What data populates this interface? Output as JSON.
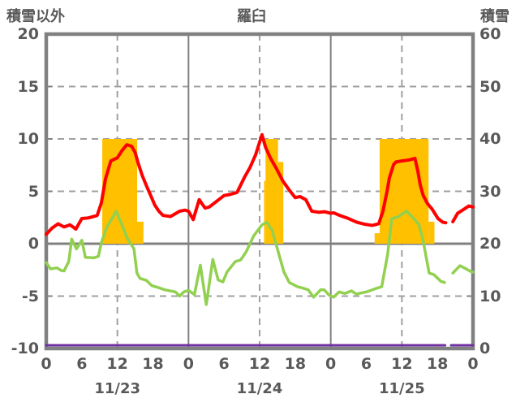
{
  "page": {
    "left_axis_title": "積雪以外",
    "title": "羅臼",
    "right_axis_title": "積雪"
  },
  "colors": {
    "temperature_line": "#FF0000",
    "secondary_line": "#92D050",
    "sunshine_bar": "#FFC000",
    "snow_depth_line": "#7030A0",
    "axis": "#808080",
    "grid": "#A0A0A0",
    "text": "#595959"
  },
  "chart_data": {
    "type": "line",
    "title": "羅臼",
    "left_axis": {
      "title": "積雪以外",
      "min": -10,
      "max": 20,
      "tick_values": [
        20,
        15,
        10,
        5,
        0,
        -5,
        -10
      ],
      "tick_labels": [
        "20",
        "15",
        "10",
        "5",
        "0",
        "-5",
        "-10"
      ]
    },
    "right_axis": {
      "title": "積雪",
      "min": 0,
      "max": 60,
      "tick_values": [
        60,
        50,
        40,
        30,
        20,
        10,
        0
      ],
      "tick_labels": [
        "60",
        "50",
        "40",
        "30",
        "20",
        "10",
        "0"
      ]
    },
    "x_axis": {
      "total_hours": 72,
      "hour_tick_step": 6,
      "hour_tick_labels": [
        "0",
        "6",
        "12",
        "18",
        "0",
        "6",
        "12",
        "18",
        "0",
        "6",
        "12",
        "18",
        "0"
      ],
      "date_labels": [
        "11/23",
        "11/24",
        "11/25"
      ],
      "date_label_hours": [
        12,
        36,
        60
      ],
      "dashed_vertical_hours": [
        12,
        36,
        60
      ],
      "solid_vertical_hours": [
        24,
        48
      ]
    },
    "dashed_gridline_values": [
      15,
      10,
      5,
      -5
    ],
    "zero_line_value": 0,
    "series": [
      {
        "name": "temperature-line",
        "color": "#FF0000",
        "axis": "left",
        "width": 4,
        "points": [
          [
            0,
            0.9
          ],
          [
            1,
            1.5
          ],
          [
            2,
            1.9
          ],
          [
            3,
            1.6
          ],
          [
            4,
            1.8
          ],
          [
            5,
            1.4
          ],
          [
            6,
            2.4
          ],
          [
            7,
            2.45
          ],
          [
            8,
            2.6
          ],
          [
            8.6,
            2.7
          ],
          [
            9.3,
            3.9
          ],
          [
            10,
            6.2
          ],
          [
            10.9,
            7.9
          ],
          [
            12,
            8.2
          ],
          [
            12.8,
            8.9
          ],
          [
            13.6,
            9.45
          ],
          [
            14.4,
            9.3
          ],
          [
            15,
            8.7
          ],
          [
            15.5,
            7.7
          ],
          [
            16.2,
            6.5
          ],
          [
            17,
            5.4
          ],
          [
            17.7,
            4.5
          ],
          [
            18.3,
            3.7
          ],
          [
            19,
            3.1
          ],
          [
            19.7,
            2.7
          ],
          [
            21,
            2.6
          ],
          [
            22.5,
            3.1
          ],
          [
            23.4,
            3.2
          ],
          [
            24,
            3.1
          ],
          [
            24.8,
            2.3
          ],
          [
            25.8,
            4.2
          ],
          [
            26.8,
            3.4
          ],
          [
            27.5,
            3.5
          ],
          [
            30,
            4.6
          ],
          [
            31,
            4.7
          ],
          [
            32.2,
            4.9
          ],
          [
            33.5,
            6.4
          ],
          [
            34.4,
            7.3
          ],
          [
            35.3,
            8.45
          ],
          [
            36.4,
            10.4
          ],
          [
            37,
            9.2
          ],
          [
            37.8,
            8.2
          ],
          [
            38.9,
            7.1
          ],
          [
            39.9,
            6.0
          ],
          [
            40.9,
            5.2
          ],
          [
            42,
            4.4
          ],
          [
            42.8,
            4.5
          ],
          [
            43.8,
            4.2
          ],
          [
            44.8,
            3.1
          ],
          [
            46,
            3.0
          ],
          [
            47,
            3.05
          ],
          [
            48,
            2.9
          ],
          [
            48.5,
            2.95
          ],
          [
            49.5,
            2.7
          ],
          [
            51,
            2.4
          ],
          [
            52.4,
            2.05
          ],
          [
            53.8,
            1.85
          ],
          [
            55,
            1.75
          ],
          [
            56.1,
            1.9
          ],
          [
            56.8,
            3.1
          ],
          [
            57.5,
            5.0
          ],
          [
            57.9,
            6.3
          ],
          [
            58.6,
            7.55
          ],
          [
            59,
            7.8
          ],
          [
            60,
            7.9
          ],
          [
            61.3,
            8.0
          ],
          [
            62.2,
            8.15
          ],
          [
            62.7,
            6.9
          ],
          [
            63.1,
            5.6
          ],
          [
            63.6,
            4.6
          ],
          [
            64.3,
            3.85
          ],
          [
            65.1,
            3.3
          ],
          [
            66.1,
            2.4
          ],
          [
            66.9,
            2.05
          ],
          [
            67.4,
            2.0
          ],
          [
            68,
            null
          ],
          [
            68.6,
            2.1
          ],
          [
            69.4,
            2.9
          ],
          [
            70.5,
            3.3
          ],
          [
            71.3,
            3.6
          ],
          [
            72,
            3.5
          ]
        ]
      },
      {
        "name": "secondary-temperature-line",
        "color": "#92D050",
        "axis": "left",
        "width": 3.5,
        "points": [
          [
            0,
            -1.8
          ],
          [
            0.7,
            -2.4
          ],
          [
            1.8,
            -2.3
          ],
          [
            2.5,
            -2.55
          ],
          [
            3,
            -2.6
          ],
          [
            3.8,
            -1.7
          ],
          [
            4.3,
            0.44
          ],
          [
            5.1,
            -0.5
          ],
          [
            6,
            0.33
          ],
          [
            6.6,
            -1.3
          ],
          [
            8,
            -1.35
          ],
          [
            8.8,
            -1.2
          ],
          [
            9.3,
            0.1
          ],
          [
            10.2,
            1.55
          ],
          [
            11,
            2.3
          ],
          [
            11.8,
            3.1
          ],
          [
            12.7,
            1.9
          ],
          [
            13.6,
            0.6
          ],
          [
            14.8,
            -0.5
          ],
          [
            15.3,
            -2.8
          ],
          [
            15.8,
            -3.3
          ],
          [
            16.9,
            -3.5
          ],
          [
            17.8,
            -4.0
          ],
          [
            19,
            -4.2
          ],
          [
            20,
            -4.4
          ],
          [
            21.8,
            -4.6
          ],
          [
            22.5,
            -5.0
          ],
          [
            23.2,
            -4.6
          ],
          [
            24,
            -4.45
          ],
          [
            25,
            -4.85
          ],
          [
            26,
            -2.05
          ],
          [
            27,
            -5.8
          ],
          [
            28.1,
            -1.5
          ],
          [
            29,
            -3.45
          ],
          [
            29.8,
            -3.65
          ],
          [
            30.5,
            -2.7
          ],
          [
            31.9,
            -1.7
          ],
          [
            32.8,
            -1.55
          ],
          [
            33.7,
            -0.8
          ],
          [
            35,
            0.75
          ],
          [
            36.4,
            1.8
          ],
          [
            37.2,
            2.05
          ],
          [
            38.1,
            1.3
          ],
          [
            39.2,
            -0.9
          ],
          [
            40.1,
            -2.7
          ],
          [
            41,
            -3.7
          ],
          [
            42.4,
            -4.1
          ],
          [
            43.1,
            -4.2
          ],
          [
            44.2,
            -4.4
          ],
          [
            45.1,
            -5.1
          ],
          [
            46.3,
            -4.4
          ],
          [
            46.9,
            -4.4
          ],
          [
            47.7,
            -4.9
          ],
          [
            48.5,
            -5.1
          ],
          [
            49.4,
            -4.6
          ],
          [
            50.4,
            -4.75
          ],
          [
            51.5,
            -4.5
          ],
          [
            52.3,
            -4.8
          ],
          [
            54,
            -4.6
          ],
          [
            55.5,
            -4.3
          ],
          [
            56.6,
            -4.1
          ],
          [
            57.6,
            -1.0
          ],
          [
            58.3,
            2.4
          ],
          [
            59.3,
            2.55
          ],
          [
            60.8,
            3.1
          ],
          [
            62,
            2.4
          ],
          [
            62.9,
            1.8
          ],
          [
            63.6,
            0.25
          ],
          [
            64.6,
            -2.8
          ],
          [
            65.4,
            -2.95
          ],
          [
            66.6,
            -3.6
          ],
          [
            67.2,
            -3.7
          ],
          [
            68,
            null
          ],
          [
            68.6,
            -2.8
          ],
          [
            69.8,
            -2.1
          ],
          [
            70.5,
            -2.3
          ],
          [
            71.8,
            -2.7
          ],
          [
            72,
            -2.7
          ]
        ]
      },
      {
        "name": "snow-depth-line",
        "color": "#7030A0",
        "axis": "right",
        "width": 3,
        "points": [
          [
            0,
            0
          ],
          [
            67.3,
            0
          ],
          [
            67.7,
            null
          ],
          [
            68.3,
            0
          ],
          [
            72,
            0
          ]
        ]
      }
    ],
    "bars": {
      "name": "sunshine-bars",
      "color": "#FFC000",
      "axis": "left",
      "segments": [
        {
          "start": 9.45,
          "end": 15.33,
          "value": 10
        },
        {
          "start": 15.33,
          "end": 16.4,
          "value": 2.1
        },
        {
          "start": 36.75,
          "end": 37.0,
          "value": 6
        },
        {
          "start": 37.0,
          "end": 39.1,
          "value": 10
        },
        {
          "start": 39.1,
          "end": 40.0,
          "value": 7.8
        },
        {
          "start": 55.4,
          "end": 56.25,
          "value": 1
        },
        {
          "start": 56.25,
          "end": 64.5,
          "value": 10
        },
        {
          "start": 64.5,
          "end": 65.5,
          "value": 2.1
        }
      ]
    }
  }
}
